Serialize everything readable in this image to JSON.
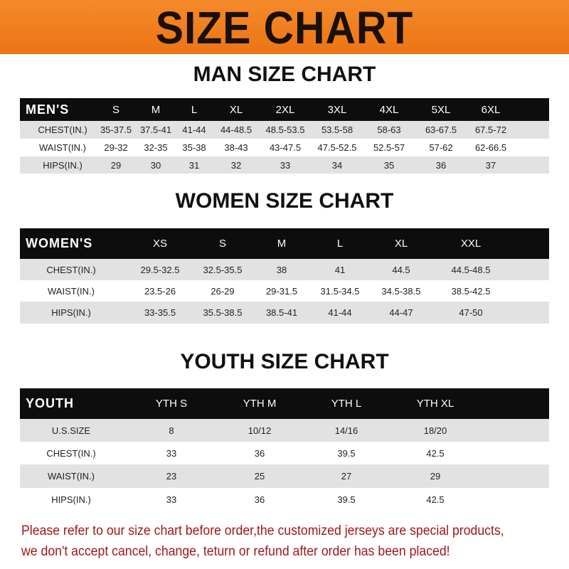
{
  "banner_title": "SIZE CHART",
  "colors": {
    "banner": "#f07d1c",
    "header_row": "#0d0d0d",
    "alt_row": "#e2e2e2",
    "note_text": "#a01818"
  },
  "men": {
    "title": "MAN SIZE CHART",
    "header": [
      "MEN'S",
      "S",
      "M",
      "L",
      "XL",
      "2XL",
      "3XL",
      "4XL",
      "5XL",
      "6XL"
    ],
    "rows": [
      [
        "CHEST(IN.)",
        "35-37.5",
        "37.5-41",
        "41-44",
        "44-48.5",
        "48.5-53.5",
        "53.5-58",
        "58-63",
        "63-67.5",
        "67.5-72"
      ],
      [
        "WAIST(IN.)",
        "29-32",
        "32-35",
        "35-38",
        "38-43",
        "43-47.5",
        "47.5-52.5",
        "52.5-57",
        "57-62",
        "62-66.5"
      ],
      [
        "HIPS(IN.)",
        "29",
        "30",
        "31",
        "32",
        "33",
        "34",
        "35",
        "36",
        "37"
      ]
    ]
  },
  "women": {
    "title": "WOMEN SIZE CHART",
    "header": [
      "WOMEN'S",
      "XS",
      "S",
      "M",
      "L",
      "XL",
      "XXL"
    ],
    "rows": [
      [
        "CHEST(IN.)",
        "29.5-32.5",
        "32.5-35.5",
        "38",
        "41",
        "44.5",
        "44.5-48.5"
      ],
      [
        "WAIST(IN.)",
        "23.5-26",
        "26-29",
        "29-31.5",
        "31.5-34.5",
        "34.5-38.5",
        "38.5-42.5"
      ],
      [
        "HIPS(IN.)",
        "33-35.5",
        "35.5-38.5",
        "38.5-41",
        "41-44",
        "44-47",
        "47-50"
      ]
    ]
  },
  "youth": {
    "title": "YOUTH SIZE CHART",
    "header": [
      "YOUTH",
      "YTH S",
      "YTH M",
      "YTH L",
      "YTH XL"
    ],
    "rows": [
      [
        "U.S.SIZE",
        "8",
        "10/12",
        "14/16",
        "18/20"
      ],
      [
        "CHEST(IN.)",
        "33",
        "36",
        "39.5",
        "42.5"
      ],
      [
        "WAIST(IN.)",
        "23",
        "25",
        "27",
        "29"
      ],
      [
        "HIPS(IN.)",
        "33",
        "36",
        "39.5",
        "42.5"
      ]
    ]
  },
  "note": {
    "line1": "Please refer to our size chart before order,the customized jerseys are special products,",
    "line2": "we don't accept cancel, change, teturn or refund after order has been placed!"
  }
}
